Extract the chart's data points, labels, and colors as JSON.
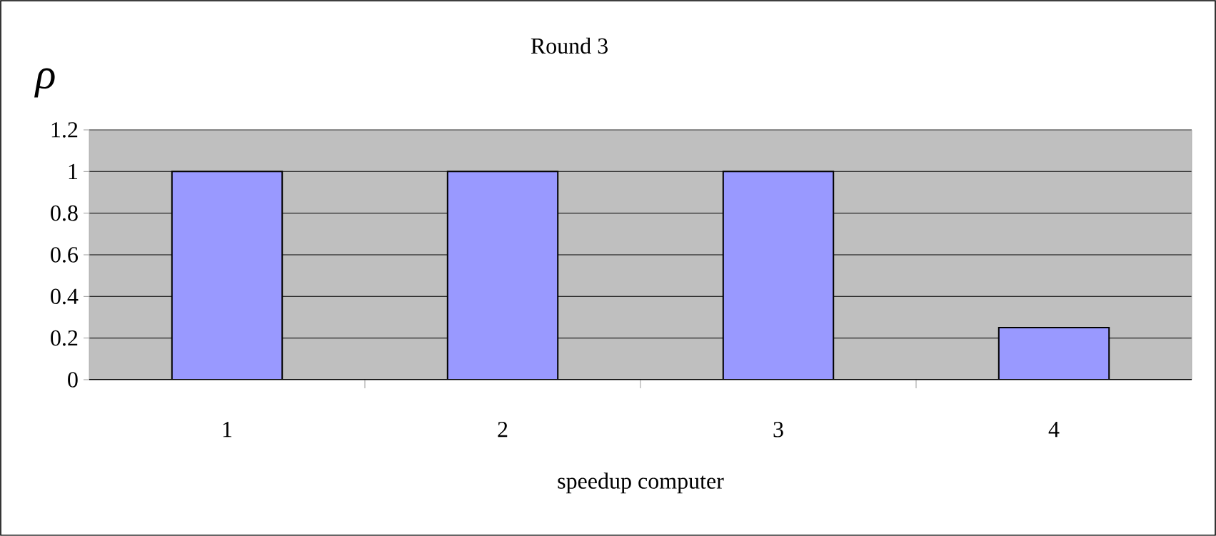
{
  "chart_data": {
    "type": "bar",
    "title": "Round 3",
    "xlabel": "speedup computer",
    "ylabel": "ρ",
    "categories": [
      "1",
      "2",
      "3",
      "4"
    ],
    "values": [
      1,
      1,
      1,
      0.25
    ],
    "color": "#9999ff",
    "ylim": [
      0,
      1.2
    ],
    "yticks": [
      0,
      0.2,
      0.4,
      0.6,
      0.8,
      1,
      1.2
    ],
    "grid": "y"
  }
}
